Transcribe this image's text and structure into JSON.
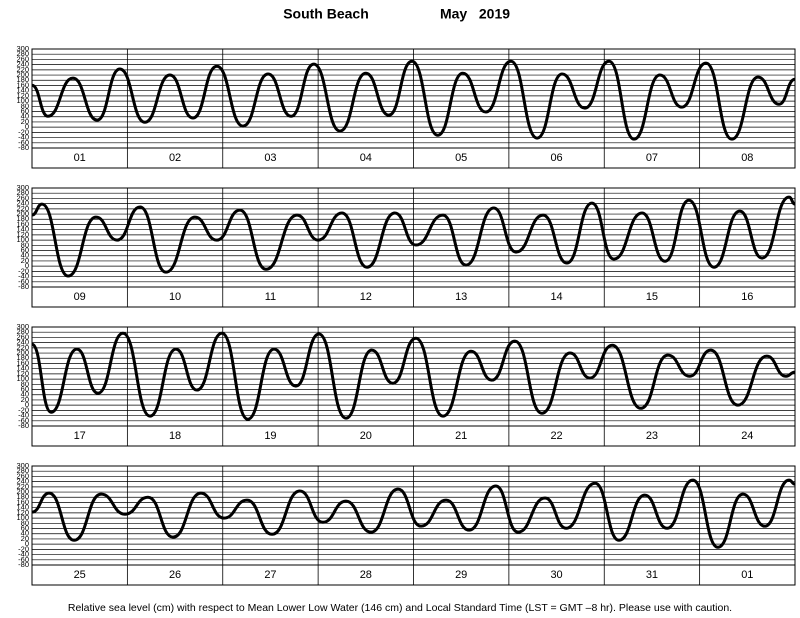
{
  "header": {
    "station": "South Beach",
    "period": "May   2019"
  },
  "chart_data": [
    {
      "type": "line",
      "color": "#000000",
      "grid": true,
      "xlim": [
        0,
        192
      ],
      "ylim": [
        -80,
        300
      ],
      "yticks": [
        300,
        280,
        260,
        240,
        220,
        200,
        180,
        160,
        140,
        120,
        100,
        80,
        60,
        40,
        20,
        0,
        -20,
        -40,
        -60,
        -80
      ],
      "categories": [
        "01",
        "02",
        "03",
        "04",
        "05",
        "06",
        "07",
        "08"
      ],
      "x": [
        0,
        4.0,
        10.3,
        16.4,
        22.1,
        28.4,
        34.7,
        40.5,
        46.5,
        53.1,
        59.4,
        65.2,
        70.9,
        77.5,
        84.0,
        89.8,
        95.6,
        102.1,
        108.4,
        114.2,
        120.5,
        127.1,
        133.4,
        139.1,
        145.2,
        151.5,
        158.0,
        163.5,
        169.6,
        176.1,
        182.7,
        188.0,
        192
      ],
      "values": [
        161,
        42,
        188,
        27,
        223,
        19,
        200,
        35,
        234,
        4,
        204,
        42,
        242,
        -15,
        207,
        46,
        253,
        -31,
        207,
        58,
        253,
        -42,
        204,
        73,
        253,
        -46,
        200,
        77,
        246,
        -46,
        192,
        88,
        184
      ]
    },
    {
      "type": "line",
      "color": "#000000",
      "grid": true,
      "xlim": [
        0,
        192
      ],
      "ylim": [
        -80,
        300
      ],
      "yticks": [
        300,
        280,
        260,
        240,
        220,
        200,
        180,
        160,
        140,
        120,
        100,
        80,
        60,
        40,
        20,
        0,
        -20,
        -40,
        -60,
        -80
      ],
      "categories": [
        "09",
        "10",
        "11",
        "12",
        "13",
        "14",
        "15",
        "16"
      ],
      "x": [
        0,
        2.5,
        9.1,
        16.1,
        21.4,
        27.2,
        33.7,
        41.0,
        46.5,
        52.3,
        58.9,
        66.7,
        72.0,
        78.0,
        84.3,
        91.3,
        96.6,
        103.4,
        109.2,
        116.2,
        121.8,
        128.6,
        134.6,
        140.9,
        146.4,
        153.5,
        159.3,
        165.3,
        171.6,
        178.1,
        183.7,
        190.5,
        192
      ],
      "values": [
        196,
        238,
        -38,
        188,
        100,
        227,
        -23,
        188,
        100,
        215,
        -12,
        196,
        100,
        204,
        -4,
        204,
        81,
        196,
        4,
        223,
        54,
        196,
        12,
        242,
        27,
        204,
        19,
        253,
        -4,
        211,
        31,
        265,
        238
      ]
    },
    {
      "type": "line",
      "color": "#000000",
      "grid": true,
      "xlim": [
        0,
        192
      ],
      "ylim": [
        -80,
        300
      ],
      "yticks": [
        300,
        280,
        260,
        240,
        220,
        200,
        180,
        160,
        140,
        120,
        100,
        80,
        60,
        40,
        20,
        0,
        -20,
        -40,
        -60,
        -80
      ],
      "categories": [
        "17",
        "18",
        "19",
        "20",
        "21",
        "22",
        "23",
        "24"
      ],
      "x": [
        0,
        4.8,
        11.3,
        16.6,
        22.9,
        29.7,
        36.2,
        41.5,
        47.8,
        54.3,
        60.9,
        66.4,
        72.2,
        79.0,
        85.5,
        90.8,
        96.6,
        103.4,
        110.5,
        115.7,
        121.5,
        128.3,
        135.4,
        140.4,
        146.0,
        153.2,
        160.0,
        165.5,
        170.8,
        177.6,
        184.9,
        189.7,
        192
      ],
      "values": [
        234,
        -27,
        215,
        46,
        276,
        -42,
        215,
        58,
        276,
        -54,
        215,
        73,
        273,
        -50,
        211,
        84,
        257,
        -42,
        207,
        96,
        246,
        -31,
        200,
        104,
        230,
        -12,
        192,
        111,
        211,
        0,
        188,
        111,
        127
      ]
    },
    {
      "type": "line",
      "color": "#000000",
      "grid": true,
      "xlim": [
        0,
        192
      ],
      "ylim": [
        -80,
        300
      ],
      "yticks": [
        300,
        280,
        260,
        240,
        220,
        200,
        180,
        160,
        140,
        120,
        100,
        80,
        60,
        40,
        20,
        0,
        -20,
        -40,
        -60,
        -80
      ],
      "categories": [
        "25",
        "26",
        "27",
        "28",
        "29",
        "30",
        "31",
        "01"
      ],
      "x": [
        0,
        4.3,
        10.6,
        17.4,
        23.4,
        29.2,
        35.5,
        42.5,
        48.3,
        54.1,
        60.4,
        67.4,
        73.2,
        79.0,
        85.3,
        92.1,
        97.9,
        104.2,
        110.0,
        116.7,
        122.3,
        129.1,
        134.4,
        141.7,
        147.7,
        154.2,
        159.8,
        166.3,
        172.6,
        178.9,
        184.4,
        190.5,
        192
      ],
      "values": [
        123,
        196,
        15,
        192,
        115,
        180,
        27,
        196,
        100,
        169,
        38,
        204,
        84,
        165,
        46,
        211,
        69,
        169,
        54,
        223,
        46,
        177,
        61,
        234,
        15,
        188,
        61,
        246,
        -12,
        192,
        69,
        246,
        230
      ]
    }
  ],
  "footnote": "Relative sea level (cm) with respect to Mean Lower Low Water (146 cm) and Local Standard Time (LST = GMT –8 hr). Please use with caution."
}
